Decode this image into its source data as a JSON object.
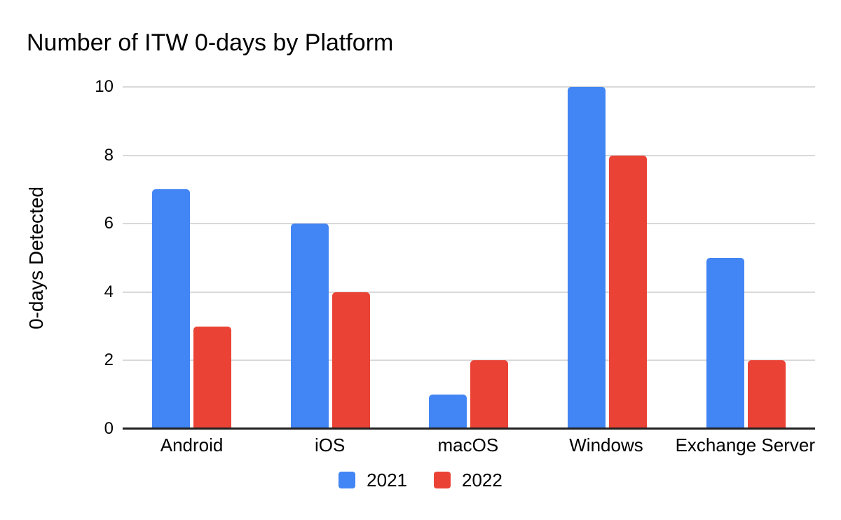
{
  "chart_data": {
    "type": "bar",
    "title": "Number of ITW 0-days by Platform",
    "categories": [
      "Android",
      "iOS",
      "macOS",
      "Windows",
      "Exchange Server"
    ],
    "series": [
      {
        "name": "2021",
        "color": "#4285F4",
        "values": [
          7,
          6,
          1,
          10,
          5
        ]
      },
      {
        "name": "2022",
        "color": "#EA4335",
        "values": [
          3,
          4,
          2,
          8,
          2
        ]
      }
    ],
    "xlabel": "",
    "ylabel": "0-days Detected",
    "ylim": [
      0,
      10
    ],
    "yticks": [
      0,
      2,
      4,
      6,
      8,
      10
    ],
    "grid": "horizontal",
    "legend_position": "bottom"
  }
}
